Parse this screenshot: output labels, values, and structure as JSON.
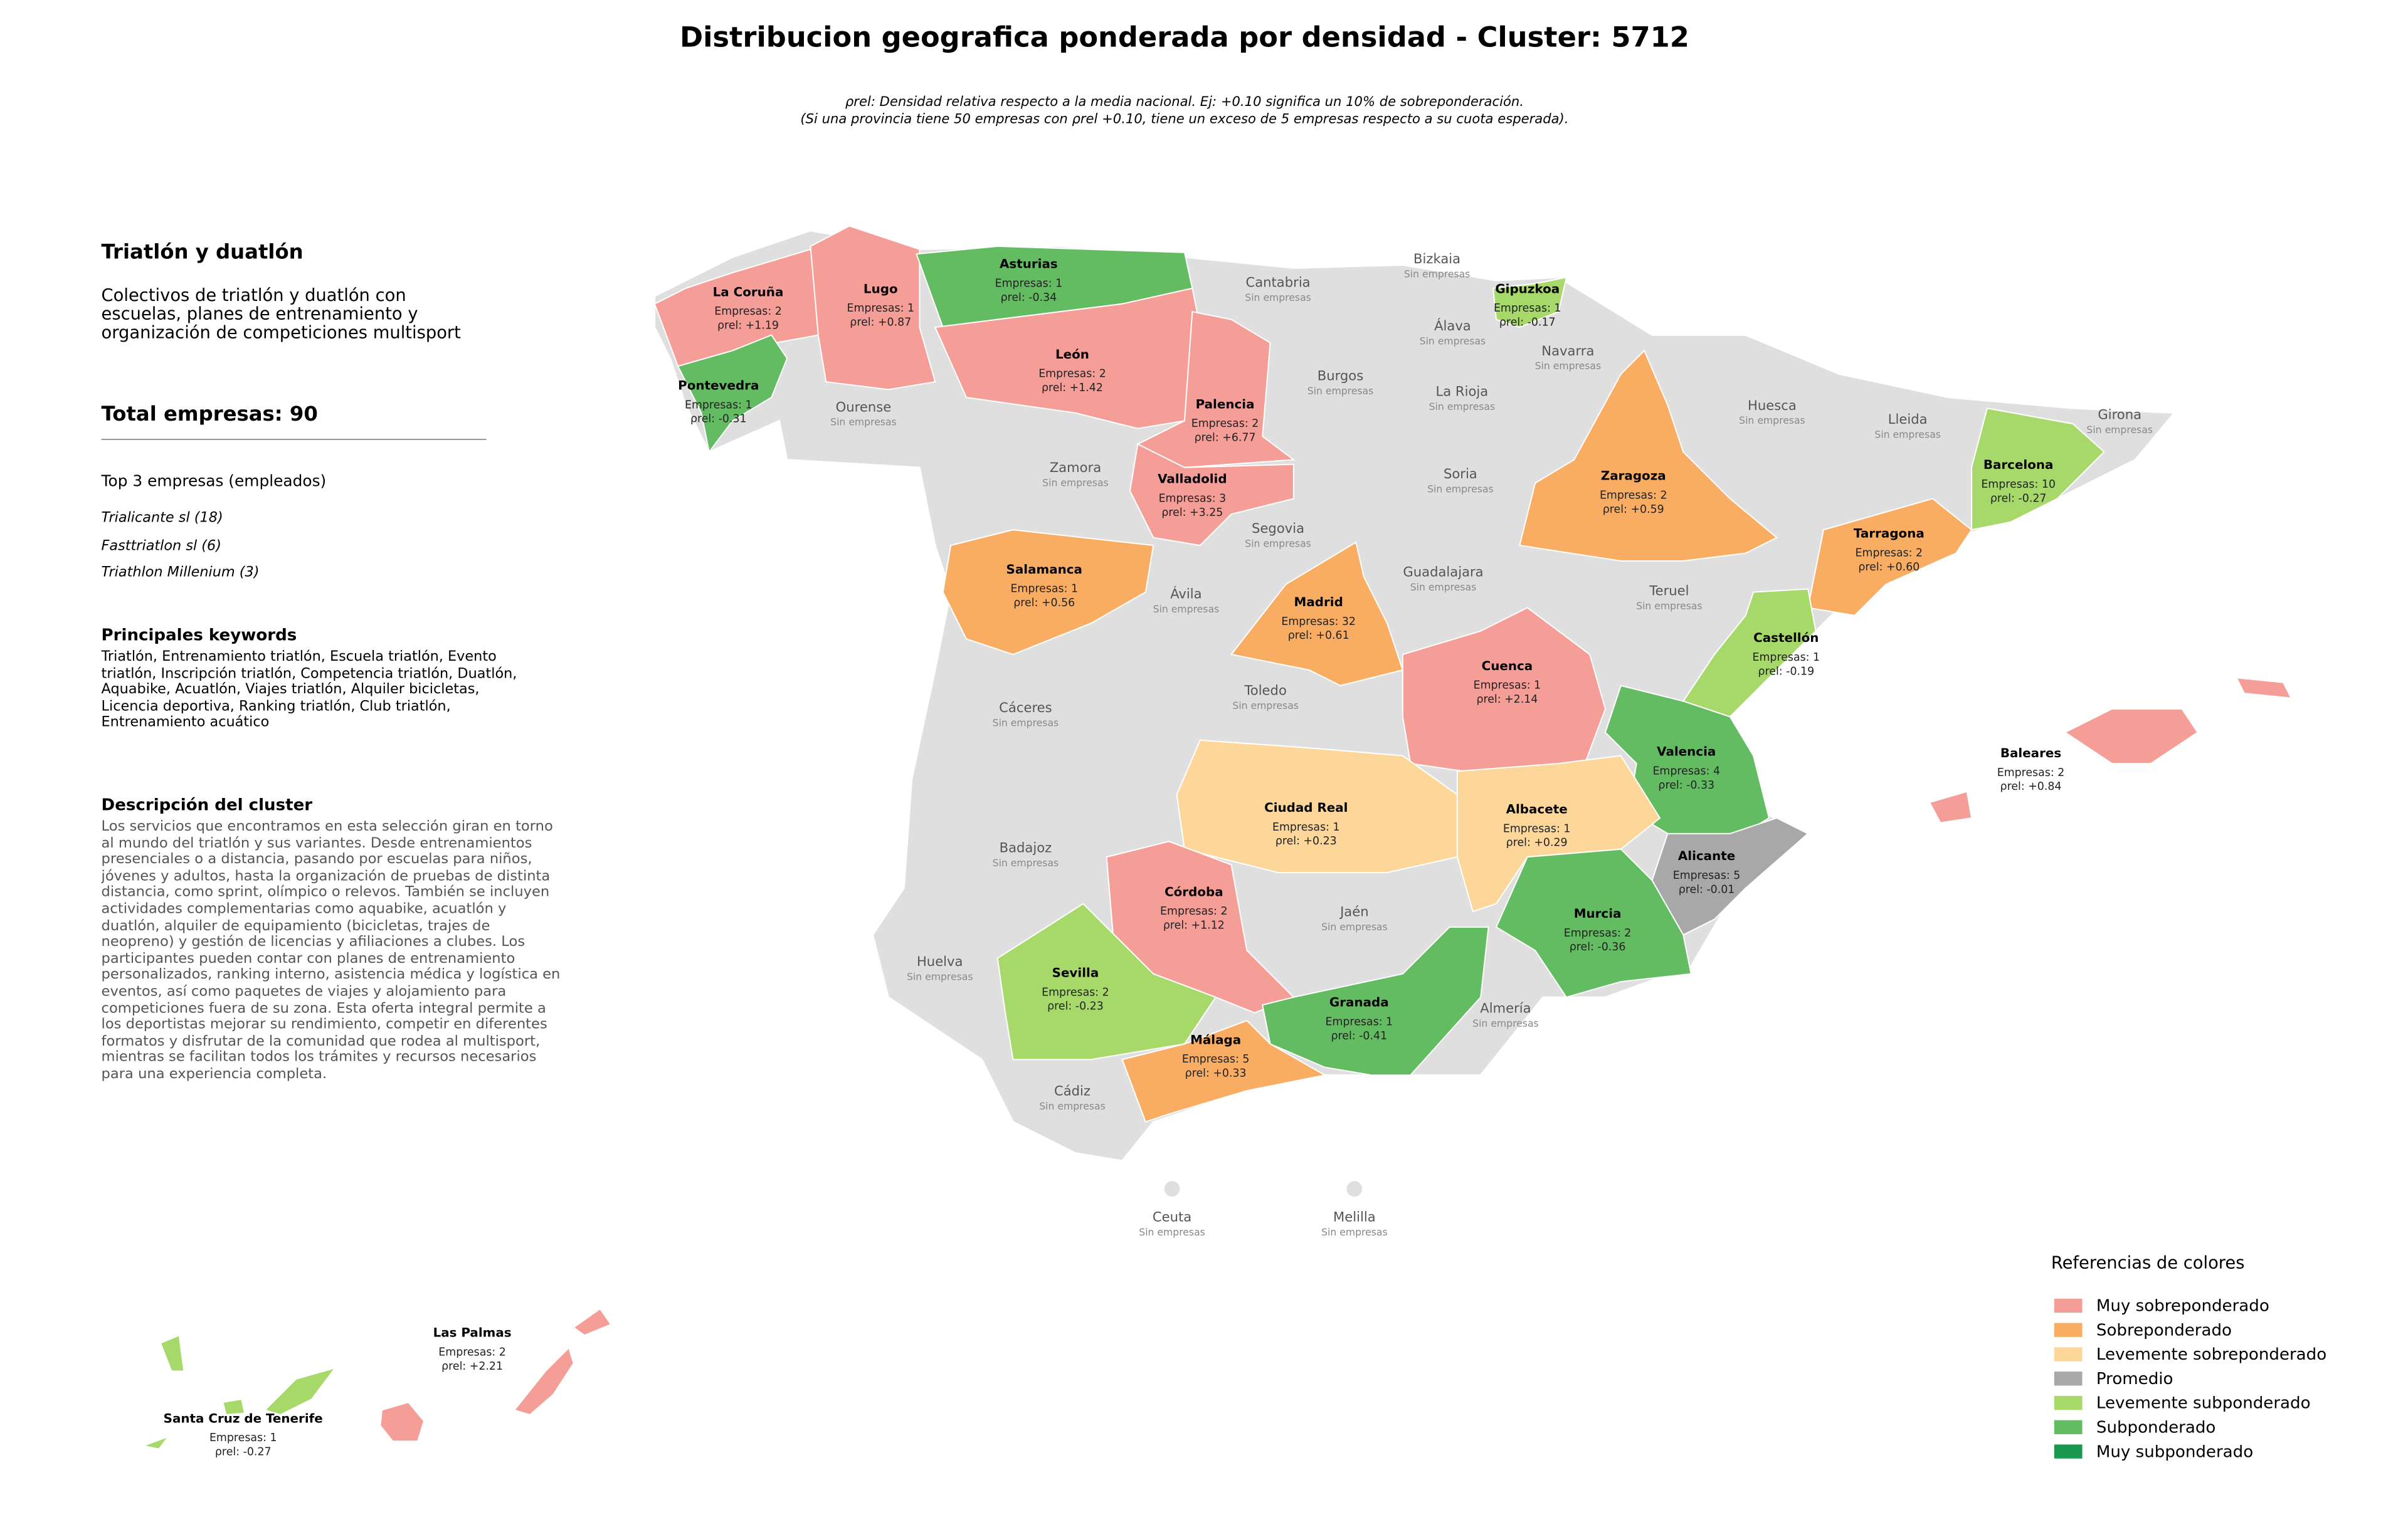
{
  "header": {
    "title": "Distribucion geografica ponderada por densidad - Cluster: 5712",
    "subtitle_lines": [
      "ρrel: Densidad relativa respecto a la media nacional. Ej: +0.10 significa un 10% de sobreponderación.",
      "(Si una provincia tiene 50 empresas con ρrel +0.10, tiene un exceso de 5 empresas respecto a su cuota esperada)."
    ]
  },
  "panel": {
    "title": "Triatlón y duatlón",
    "summary": "Colectivos de triatlón y duatlón con escuelas, planes de entrenamiento y organización de competiciones multisport",
    "total": "Total empresas: 90",
    "top_title": "Top 3 empresas (empleados)",
    "top": [
      "Trialicante sl (18)",
      "Fasttriatlon sl (6)",
      "Triathlon Millenium (3)"
    ],
    "keywords_title": "Principales keywords",
    "keywords": "Triatlón, Entrenamiento triatlón, Escuela triatlón, Evento triatlón, Inscripción triatlón, Competencia triatlón, Duatlón, Aquabike, Acuatlón, Viajes triatlón, Alquiler bicicletas, Licencia deportiva, Ranking triatlón, Club triatlón, Entrenamiento acuático",
    "description_title": "Descripción del cluster",
    "description": "Los servicios que encontramos en esta selección giran en torno al mundo del triatlón y sus variantes. Desde entrenamientos presenciales o a distancia, pasando por escuelas para niños, jóvenes y adultos, hasta la organización de pruebas de distinta distancia, como sprint, olímpico o relevos. También se incluyen actividades complementarias como aquabike, acuatlón y duatlón, alquiler de equipamiento (bicicletas, trajes de neopreno) y gestión de licencias y afiliaciones a clubes. Los participantes pueden contar con planes de entrenamiento personalizados, ranking interno, asistencia médica y logística en eventos, así como paquetes de viajes y alojamiento para competiciones fuera de su zona. Esta oferta integral permite a los deportistas mejorar su rendimiento, competir en diferentes formatos y disfrutar de la comunidad que rodea al multisport, mientras se facilitan todos los trámites y recursos necesarios para una experiencia completa."
  },
  "legend": {
    "title": "Referencias de colores",
    "items": [
      {
        "name": "Muy sobreponderado",
        "color": "#f59d97"
      },
      {
        "name": "Sobreponderado",
        "color": "#f9ad62"
      },
      {
        "name": "Levemente sobreponderado",
        "color": "#fdd699"
      },
      {
        "name": "Promedio",
        "color": "#a8a8a8"
      },
      {
        "name": "Levemente subponderado",
        "color": "#a6d96a"
      },
      {
        "name": "Subponderado",
        "color": "#63bb62"
      },
      {
        "name": "Muy subponderado",
        "color": "#1a9850"
      }
    ]
  },
  "provinces": [
    {
      "name": "La Coruña",
      "companies": "Empresas: 2",
      "rho": "ρrel: +1.19",
      "category": "Muy sobreponderado"
    },
    {
      "name": "Lugo",
      "companies": "Empresas: 1",
      "rho": "ρrel: +0.87",
      "category": "Muy sobreponderado"
    },
    {
      "name": "Asturias",
      "companies": "Empresas: 1",
      "rho": "ρrel: -0.34",
      "category": "Subponderado"
    },
    {
      "name": "León",
      "companies": "Empresas: 2",
      "rho": "ρrel: +1.42",
      "category": "Muy sobreponderado"
    },
    {
      "name": "Palencia",
      "companies": "Empresas: 2",
      "rho": "ρrel: +6.77",
      "category": "Muy sobreponderado"
    },
    {
      "name": "Pontevedra",
      "companies": "Empresas: 1",
      "rho": "ρrel: -0.31",
      "category": "Subponderado"
    },
    {
      "name": "Valladolid",
      "companies": "Empresas: 3",
      "rho": "ρrel: +3.25",
      "category": "Muy sobreponderado"
    },
    {
      "name": "Gipuzkoa",
      "companies": "Empresas: 1",
      "rho": "ρrel: -0.17",
      "category": "Levemente subponderado"
    },
    {
      "name": "Zaragoza",
      "companies": "Empresas: 2",
      "rho": "ρrel: +0.59",
      "category": "Sobreponderado"
    },
    {
      "name": "Barcelona",
      "companies": "Empresas: 10",
      "rho": "ρrel: -0.27",
      "category": "Levemente subponderado"
    },
    {
      "name": "Tarragona",
      "companies": "Empresas: 2",
      "rho": "ρrel: +0.60",
      "category": "Sobreponderado"
    },
    {
      "name": "Salamanca",
      "companies": "Empresas: 1",
      "rho": "ρrel: +0.56",
      "category": "Sobreponderado"
    },
    {
      "name": "Madrid",
      "companies": "Empresas: 32",
      "rho": "ρrel: +0.61",
      "category": "Sobreponderado"
    },
    {
      "name": "Cuenca",
      "companies": "Empresas: 1",
      "rho": "ρrel: +2.14",
      "category": "Muy sobreponderado"
    },
    {
      "name": "Castellón",
      "companies": "Empresas: 1",
      "rho": "ρrel: -0.19",
      "category": "Levemente subponderado"
    },
    {
      "name": "Valencia",
      "companies": "Empresas: 4",
      "rho": "ρrel: -0.33",
      "category": "Subponderado"
    },
    {
      "name": "Ciudad Real",
      "companies": "Empresas: 1",
      "rho": "ρrel: +0.23",
      "category": "Levemente sobreponderado"
    },
    {
      "name": "Albacete",
      "companies": "Empresas: 1",
      "rho": "ρrel: +0.29",
      "category": "Levemente sobreponderado"
    },
    {
      "name": "Alicante",
      "companies": "Empresas: 5",
      "rho": "ρrel: -0.01",
      "category": "Promedio"
    },
    {
      "name": "Murcia",
      "companies": "Empresas: 2",
      "rho": "ρrel: -0.36",
      "category": "Subponderado"
    },
    {
      "name": "Córdoba",
      "companies": "Empresas: 2",
      "rho": "ρrel: +1.12",
      "category": "Muy sobreponderado"
    },
    {
      "name": "Sevilla",
      "companies": "Empresas: 2",
      "rho": "ρrel: -0.23",
      "category": "Levemente subponderado"
    },
    {
      "name": "Granada",
      "companies": "Empresas: 1",
      "rho": "ρrel: -0.41",
      "category": "Subponderado"
    },
    {
      "name": "Málaga",
      "companies": "Empresas: 5",
      "rho": "ρrel: +0.33",
      "category": "Sobreponderado"
    },
    {
      "name": "Baleares",
      "companies": "Empresas: 2",
      "rho": "ρrel: +0.84",
      "category": "Muy sobreponderado"
    },
    {
      "name": "Las Palmas",
      "companies": "Empresas: 2",
      "rho": "ρrel: +2.21",
      "category": "Muy sobreponderado"
    },
    {
      "name": "Santa Cruz de Tenerife",
      "companies": "Empresas: 1",
      "rho": "ρrel: -0.27",
      "category": "Levemente subponderado"
    },
    {
      "name": "Cantabria",
      "companies": "Sin empresas"
    },
    {
      "name": "Bizkaia",
      "companies": "Sin empresas"
    },
    {
      "name": "Álava",
      "companies": "Sin empresas"
    },
    {
      "name": "Navarra",
      "companies": "Sin empresas"
    },
    {
      "name": "Burgos",
      "companies": "Sin empresas"
    },
    {
      "name": "La Rioja",
      "companies": "Sin empresas"
    },
    {
      "name": "Ourense",
      "companies": "Sin empresas"
    },
    {
      "name": "Huesca",
      "companies": "Sin empresas"
    },
    {
      "name": "Lleida",
      "companies": "Sin empresas"
    },
    {
      "name": "Girona",
      "companies": "Sin empresas"
    },
    {
      "name": "Zamora",
      "companies": "Sin empresas"
    },
    {
      "name": "Soria",
      "companies": "Sin empresas"
    },
    {
      "name": "Segovia",
      "companies": "Sin empresas"
    },
    {
      "name": "Guadalajara",
      "companies": "Sin empresas"
    },
    {
      "name": "Teruel",
      "companies": "Sin empresas"
    },
    {
      "name": "Ávila",
      "companies": "Sin empresas"
    },
    {
      "name": "Cáceres",
      "companies": "Sin empresas"
    },
    {
      "name": "Toledo",
      "companies": "Sin empresas"
    },
    {
      "name": "Badajoz",
      "companies": "Sin empresas"
    },
    {
      "name": "Jaén",
      "companies": "Sin empresas"
    },
    {
      "name": "Huelva",
      "companies": "Sin empresas"
    },
    {
      "name": "Almería",
      "companies": "Sin empresas"
    },
    {
      "name": "Cádiz",
      "companies": "Sin empresas"
    },
    {
      "name": "Ceuta",
      "companies": "Sin empresas"
    },
    {
      "name": "Melilla",
      "companies": "Sin empresas"
    }
  ]
}
